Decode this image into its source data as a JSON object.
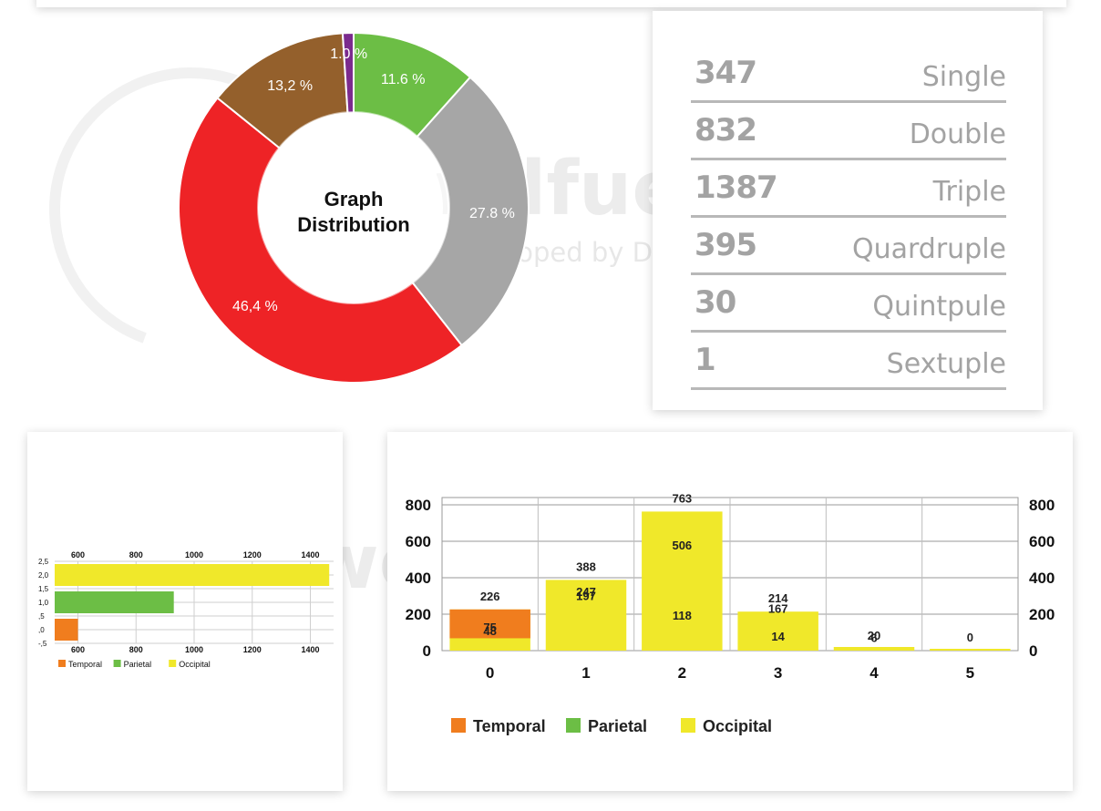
{
  "watermark": {
    "name": "worldfueinstitute",
    "developer": "Developed by Dr. Koray Erdogan"
  },
  "colors": {
    "temporal": "#f07d1e",
    "parietal": "#6cbe45",
    "occipital": "#f0e82a",
    "red": "#ee2326",
    "gray": "#a6a6a6",
    "brown": "#94602c",
    "purple": "#7b2b8e",
    "stat_text": "#a3a3a3"
  },
  "stats": [
    {
      "value": "347",
      "label": "Single"
    },
    {
      "value": "832",
      "label": "Double"
    },
    {
      "value": "1387",
      "label": "Triple"
    },
    {
      "value": "395",
      "label": "Quardruple"
    },
    {
      "value": "30",
      "label": "Quintpule"
    },
    {
      "value": "1",
      "label": "Sextuple"
    }
  ],
  "chart_data": [
    {
      "type": "pie",
      "title": "Graph Distribution",
      "slices": [
        {
          "label": "11.6  %",
          "value": 11.6,
          "color": "#6cbe45"
        },
        {
          "label": "27.8  %",
          "value": 27.8,
          "color": "#a6a6a6"
        },
        {
          "label": "46,4  %",
          "value": 46.4,
          "color": "#ee2326"
        },
        {
          "label": "13,2  %",
          "value": 13.2,
          "color": "#94602c"
        },
        {
          "label": "1.0 %",
          "value": 1.0,
          "color": "#7b2b8e"
        }
      ]
    },
    {
      "type": "bar",
      "orientation": "horizontal",
      "xticks": [
        "600",
        "800",
        "1000",
        "1200",
        "1400"
      ],
      "yticks": [
        "2,5",
        "2,0",
        "1,5",
        "1,0",
        ",5",
        ",0",
        "-,5"
      ],
      "xlim": [
        520,
        1480
      ],
      "ylim": [
        -0.5,
        2.5
      ],
      "series": [
        {
          "name": "Temporal",
          "y": 0,
          "value": 600,
          "color": "#f07d1e"
        },
        {
          "name": "Parietal",
          "y": 1,
          "value": 930,
          "color": "#6cbe45"
        },
        {
          "name": "Occipital",
          "y": 2,
          "value": 1465,
          "color": "#f0e82a"
        }
      ],
      "legend": [
        "Temporal",
        "Parietal",
        "Occipital"
      ]
    },
    {
      "type": "bar",
      "orientation": "vertical",
      "categories": [
        "0",
        "1",
        "2",
        "3",
        "4",
        "5"
      ],
      "yticks": [
        "0",
        "200",
        "400",
        "600",
        "800"
      ],
      "ylim": [
        0,
        800
      ],
      "totals": [
        226,
        388,
        763,
        214,
        20,
        0
      ],
      "temporal": [
        226,
        0,
        0,
        0,
        0,
        0
      ],
      "annotations": [
        [
          {
            "text": "226",
            "y": 226,
            "above": true
          },
          {
            "text": "75",
            "y": 130
          },
          {
            "text": "48",
            "y": 110
          }
        ],
        [
          {
            "text": "388",
            "y": 388,
            "above": true
          },
          {
            "text": "247",
            "y": 325
          },
          {
            "text": "197",
            "y": 303
          }
        ],
        [
          {
            "text": "763",
            "y": 763,
            "above": true
          },
          {
            "text": "506",
            "y": 580
          },
          {
            "text": "118",
            "y": 195
          }
        ],
        [
          {
            "text": "214",
            "y": 214,
            "above": true
          },
          {
            "text": "167",
            "y": 232
          },
          {
            "text": "14",
            "y": 80
          }
        ],
        [
          {
            "text": "20",
            "y": 85
          },
          {
            "text": "6",
            "y": 72
          }
        ],
        [
          {
            "text": "0",
            "y": 75
          }
        ]
      ],
      "legend": [
        "Temporal",
        "Parietal",
        "Occipital"
      ]
    }
  ]
}
